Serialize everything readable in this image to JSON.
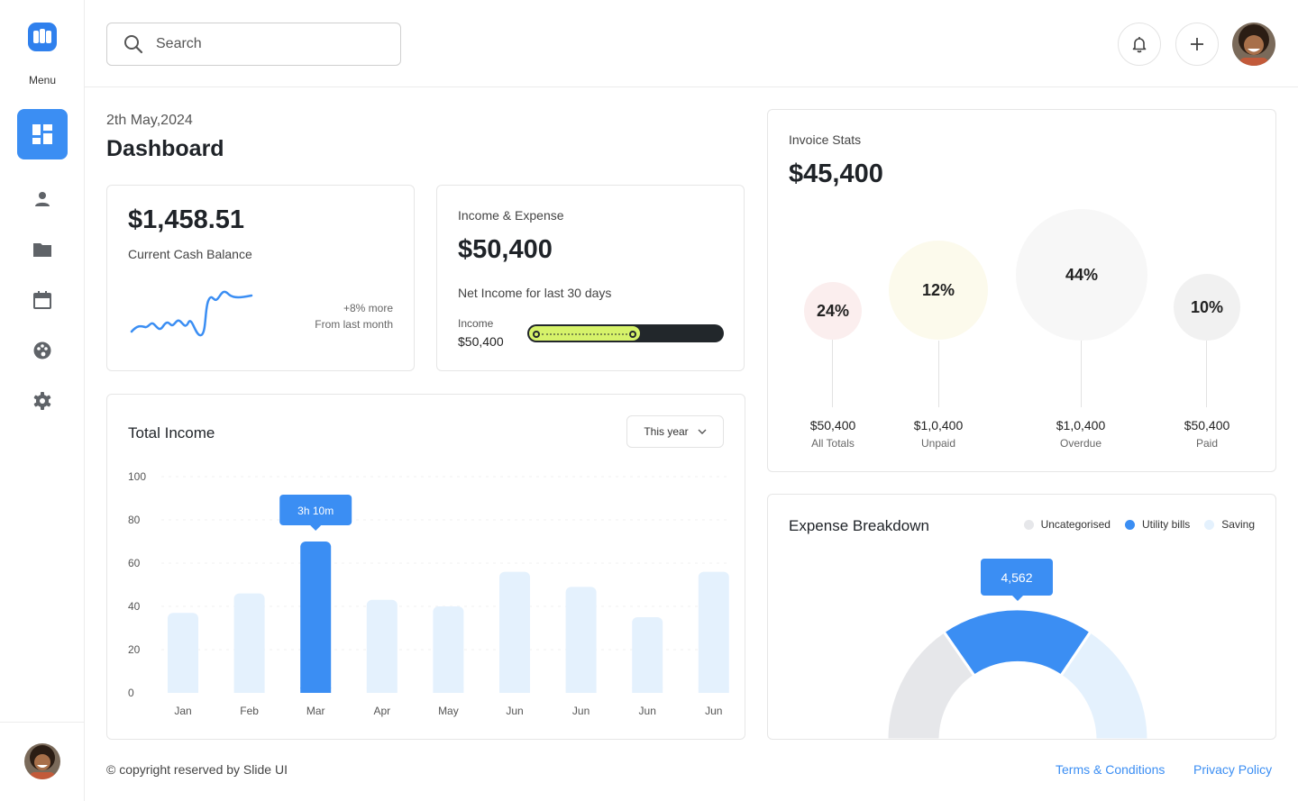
{
  "sidebar": {
    "menu_label": "Menu",
    "items": [
      {
        "icon": "dashboard-icon",
        "active": true
      },
      {
        "icon": "user-icon"
      },
      {
        "icon": "folder-icon"
      },
      {
        "icon": "calendar-icon"
      },
      {
        "icon": "palette-icon"
      },
      {
        "icon": "gear-icon"
      }
    ]
  },
  "header": {
    "search_placeholder": "Search"
  },
  "page": {
    "date": "2th May,2024",
    "title": "Dashboard"
  },
  "cash": {
    "amount": "$1,458.51",
    "label": "Current Cash Balance",
    "change": "+8% more",
    "period": "From last month"
  },
  "income_expense": {
    "title": "Income & Expense",
    "amount": "$50,400",
    "subtitle": "Net Income for last 30 days",
    "income_label": "Income",
    "income_value": "$50,400",
    "progress": 0.58
  },
  "total_income": {
    "title": "Total Income",
    "filter": "This year",
    "tooltip": "3h 10m",
    "highlight_index": 2
  },
  "invoice": {
    "title": "Invoice Stats",
    "amount": "$45,400",
    "stats": [
      {
        "percent": "24%",
        "value": "$50,400",
        "label": "All Totals",
        "color": "#fbeeee"
      },
      {
        "percent": "12%",
        "value": "$1,0,400",
        "label": "Unpaid",
        "color": "#fcfaec"
      },
      {
        "percent": "44%",
        "value": "$1,0,400",
        "label": "Overdue",
        "color": "#f7f7f7"
      },
      {
        "percent": "10%",
        "value": "$50,400",
        "label": "Paid",
        "color": "#f1f1f1"
      }
    ]
  },
  "expense": {
    "title": "Expense Breakdown",
    "legend": [
      {
        "label": "Uncategorised",
        "color": "#e6e7ea"
      },
      {
        "label": "Utility bills",
        "color": "#3b8ef3"
      },
      {
        "label": "Saving",
        "color": "#e4f1fd"
      }
    ],
    "tooltip": "4,562"
  },
  "footer": {
    "copyright": "© copyright reserved by Slide UI",
    "terms": "Terms & Conditions",
    "privacy": "Privacy Policy"
  },
  "chart_data": {
    "type": "bar",
    "categories": [
      "Jan",
      "Feb",
      "Mar",
      "Apr",
      "May",
      "Jun",
      "Jun",
      "Jun",
      "Jun"
    ],
    "values": [
      37,
      46,
      70,
      43,
      40,
      56,
      49,
      35,
      56
    ],
    "yticks": [
      0,
      20,
      40,
      60,
      80,
      100
    ],
    "ylim": [
      0,
      100
    ],
    "title": "Total Income",
    "xlabel": "",
    "ylabel": "",
    "grid": true,
    "colors": {
      "default": "#e4f1fd",
      "highlight": "#3b8ef3"
    }
  }
}
